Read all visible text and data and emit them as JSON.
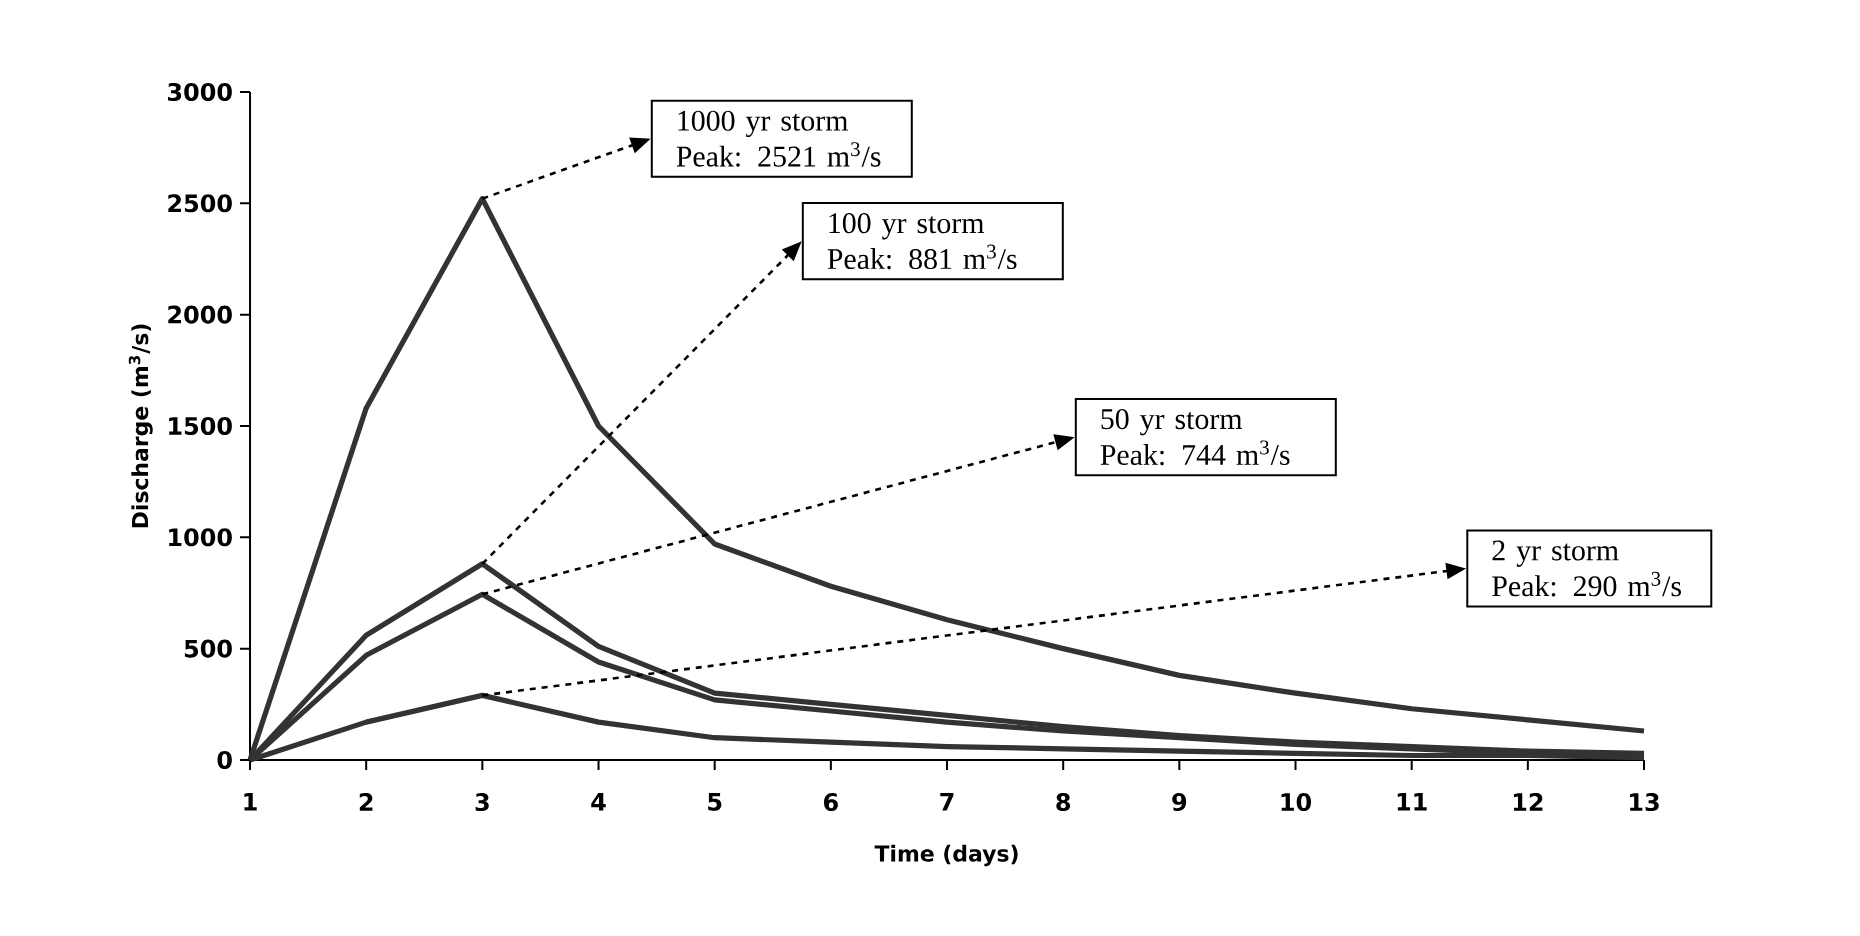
{
  "chart_data": {
    "type": "line",
    "xlabel": "Time (days)",
    "ylabel": "Discharge (m$^{3}$/s)",
    "x": [
      1,
      2,
      3,
      4,
      5,
      6,
      7,
      8,
      9,
      10,
      11,
      12,
      13
    ],
    "series": [
      {
        "color": "#333333",
        "values": [
          0,
          1580,
          2521,
          1500,
          970,
          780,
          630,
          500,
          380,
          300,
          230,
          180,
          130
        ]
      },
      {
        "color": "#333333",
        "values": [
          0,
          560,
          881,
          510,
          300,
          250,
          200,
          150,
          110,
          80,
          60,
          40,
          30
        ]
      },
      {
        "color": "#333333",
        "values": [
          0,
          470,
          744,
          440,
          270,
          220,
          170,
          130,
          100,
          70,
          50,
          30,
          20
        ]
      },
      {
        "color": "#333333",
        "values": [
          0,
          170,
          290,
          170,
          100,
          80,
          60,
          50,
          40,
          30,
          20,
          20,
          10
        ]
      }
    ],
    "xlim": [
      1,
      13
    ],
    "ylim": [
      0,
      3000
    ],
    "xticks": [
      1,
      2,
      3,
      4,
      5,
      6,
      7,
      8,
      9,
      10,
      11,
      12,
      13
    ],
    "yticks": [
      0,
      500,
      1000,
      1500,
      2000,
      2500,
      3000
    ],
    "annotations": [
      "1000 yr storm Peak: 2521 m$^{3}$/s",
      "100 yr storm Peak: 881 m$^{3}$/s",
      "50 yr storm Peak: 744 m$^{3}$/s",
      "2 yr storm Peak: 290 m$^{3}$/s"
    ],
    "line_style": "solid"
  }
}
